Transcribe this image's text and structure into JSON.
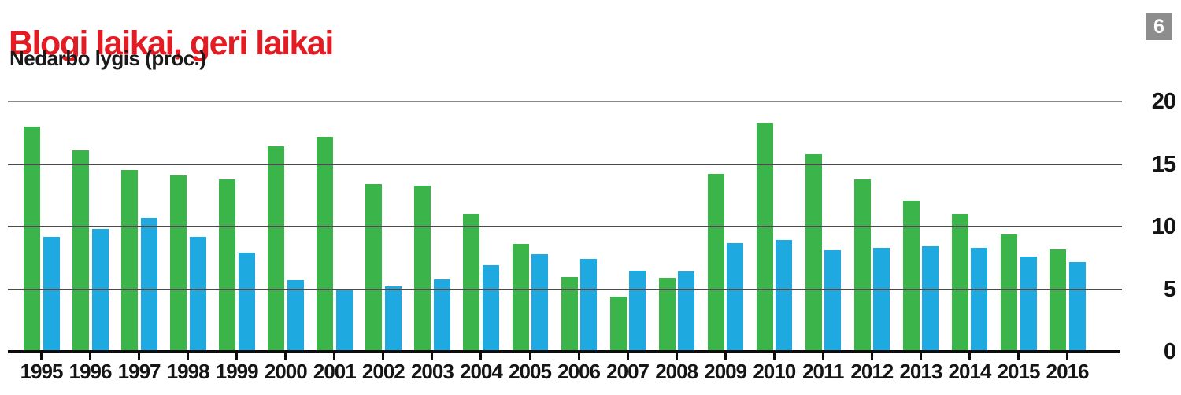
{
  "header": {
    "title": "Blogi laikai, geri laikai",
    "subtitle": "Nedarbo lygis (proc.)",
    "page_badge": "6"
  },
  "colors": {
    "title_red": "#e31b23",
    "subtitle_black": "#1a1a1a",
    "series_green": "#3bb54a",
    "series_blue": "#1ea9e1",
    "badge_gray": "#8d8d8d",
    "gridline_gray": "#4a4a4a",
    "top_gridline_gray": "#8a8a8a",
    "axis_black": "#0c0c0c"
  },
  "chart_data": {
    "type": "bar",
    "title": "Blogi laikai, geri laikai",
    "subtitle": "Nedarbo lygis (proc.)",
    "categories": [
      "1995",
      "1996",
      "1997",
      "1998",
      "1999",
      "2000",
      "2001",
      "2002",
      "2003",
      "2004",
      "2005",
      "2006",
      "2007",
      "2008",
      "2009",
      "2010",
      "2011",
      "2012",
      "2013",
      "2014",
      "2015",
      "2016"
    ],
    "series": [
      {
        "name": "green",
        "color": "#3bb54a",
        "values": [
          18.0,
          16.1,
          14.5,
          14.1,
          13.8,
          16.4,
          17.2,
          13.4,
          13.3,
          11.0,
          8.6,
          6.0,
          4.4,
          5.9,
          14.2,
          18.3,
          15.8,
          13.8,
          12.1,
          11.0,
          9.4,
          8.2
        ]
      },
      {
        "name": "blue",
        "color": "#1ea9e1",
        "values": [
          9.2,
          9.8,
          10.7,
          9.2,
          7.9,
          5.7,
          5.0,
          5.2,
          5.8,
          6.9,
          7.8,
          7.4,
          6.5,
          6.4,
          8.7,
          8.9,
          8.1,
          8.3,
          8.4,
          8.3,
          7.6,
          7.2
        ]
      }
    ],
    "xlabel": "",
    "ylabel": "",
    "ylim": [
      0,
      20
    ],
    "yticks": [
      0,
      5,
      10,
      15,
      20
    ],
    "yaxis_side": "right",
    "grid": true,
    "legend": "none"
  }
}
